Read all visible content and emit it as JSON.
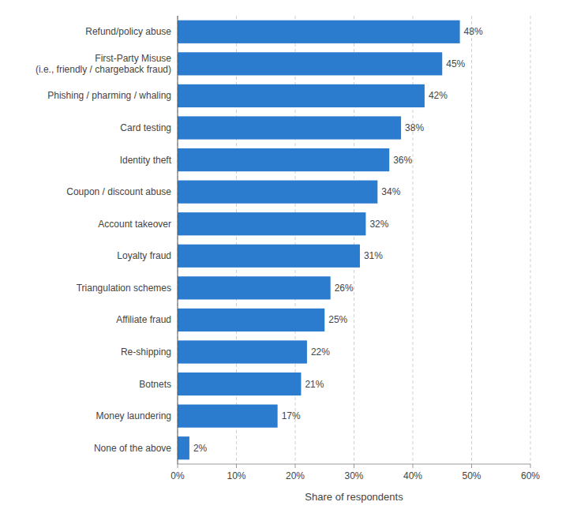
{
  "chart_data": {
    "type": "bar",
    "orientation": "horizontal",
    "categories": [
      "None of the above",
      "Money laundering",
      "Botnets",
      "Re-shipping",
      "Affiliate fraud",
      "Triangulation schemes",
      "Loyalty fraud",
      "Account takeover",
      "Coupon / discount abuse",
      "Identity theft",
      "Card testing",
      "Phishing / pharming / whaling",
      "First-Party Misuse\n(i.e., friendly / chargeback fraud)",
      "Refund/policy abuse"
    ],
    "values": [
      2,
      17,
      21,
      22,
      25,
      26,
      31,
      32,
      34,
      36,
      38,
      42,
      45,
      48
    ],
    "value_labels": [
      "2%",
      "17%",
      "21%",
      "22%",
      "25%",
      "26%",
      "31%",
      "32%",
      "34%",
      "36%",
      "38%",
      "42%",
      "45%",
      "48%"
    ],
    "data_labels": true,
    "color": "#2b7bce",
    "xlabel": "Share of respondents",
    "xlim": [
      0,
      60
    ],
    "xticks": [
      {
        "value": 0,
        "label": "0%"
      },
      {
        "value": 10,
        "label": "10%"
      },
      {
        "value": 20,
        "label": "20%"
      },
      {
        "value": 30,
        "label": "30%"
      },
      {
        "value": 40,
        "label": "40%"
      },
      {
        "value": 50,
        "label": "50%"
      },
      {
        "value": 60,
        "label": "60%"
      }
    ],
    "grid": true
  }
}
